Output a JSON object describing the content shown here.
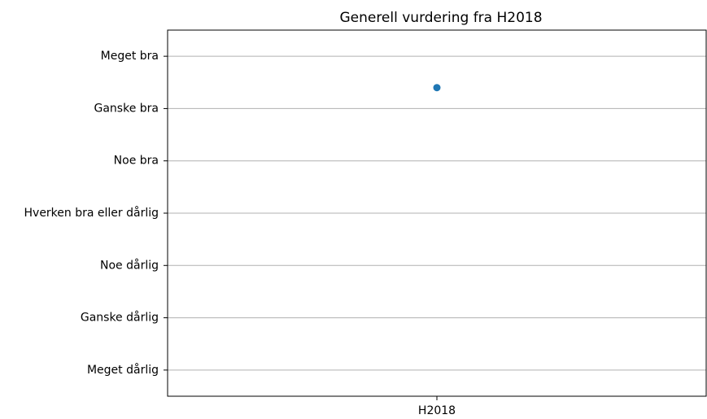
{
  "chart_data": {
    "type": "scatter",
    "title": "Generell vurdering fra H2018",
    "categories": [
      "H2018"
    ],
    "series": [
      {
        "name": "H2018",
        "color": "#1f77b4",
        "values": [
          6.4
        ]
      }
    ],
    "ylim": [
      0.5,
      7.5
    ],
    "yticks": [
      {
        "value": 1,
        "label": "Meget dårlig"
      },
      {
        "value": 2,
        "label": "Ganske dårlig"
      },
      {
        "value": 3,
        "label": "Noe dårlig"
      },
      {
        "value": 4,
        "label": "Hverken bra eller dårlig"
      },
      {
        "value": 5,
        "label": "Noe bra"
      },
      {
        "value": 6,
        "label": "Ganske bra"
      },
      {
        "value": 7,
        "label": "Meget bra"
      }
    ],
    "grid": true
  }
}
